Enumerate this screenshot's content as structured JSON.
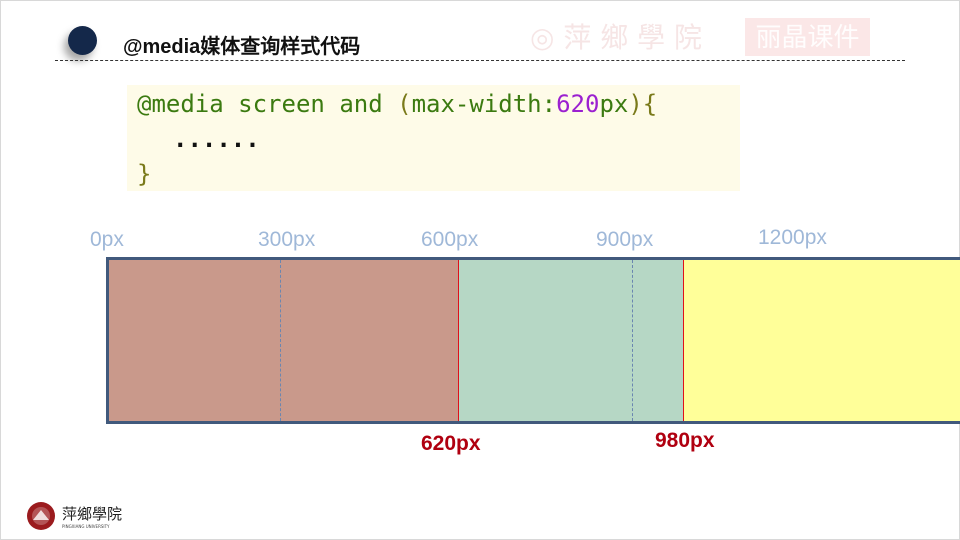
{
  "header": {
    "title": "@media媒体查询样式代码"
  },
  "watermark": {
    "school": "萍乡学院",
    "brand": "丽晶课件"
  },
  "code": {
    "line1": {
      "at_media": "@media",
      "screen": "screen",
      "and": "and",
      "open_paren": "(",
      "feature": "max-width:",
      "value": "620",
      "unit": "px",
      "close": "){"
    },
    "line2": "......",
    "line3": "}"
  },
  "ruler": {
    "ticks": [
      "0px",
      "300px",
      "600px",
      "900px",
      "1200px"
    ]
  },
  "breakpoints": [
    "620px",
    "980px"
  ],
  "colors": {
    "small": "#c9998b",
    "medium": "#b6d7c5",
    "large": "#ffff99",
    "breakpoint": "#e0101a",
    "border": "#41597c"
  },
  "footer": {
    "logo_name": "萍乡学院",
    "logo_sub": "PINGXIANG UNIVERSITY"
  }
}
